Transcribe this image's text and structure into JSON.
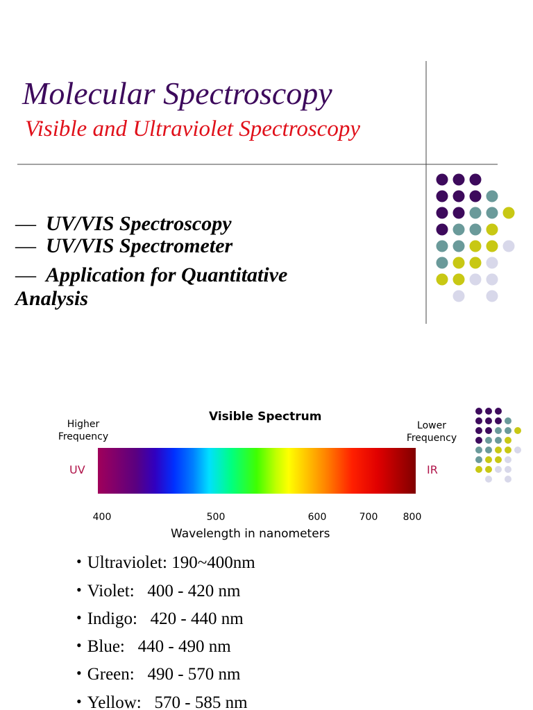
{
  "header": {
    "title": "Molecular Spectroscopy",
    "subtitle": "Visible and Ultraviolet Spectroscopy"
  },
  "topics": [
    "UV/VIS Spectroscopy",
    "UV/VIS Spectrometer",
    "Application for Quantitative Analysis"
  ],
  "spectrum": {
    "title": "Visible Spectrum",
    "left_label": "Higher Frequency",
    "right_label": "Lower Frequency",
    "left_end": "UV",
    "right_end": "IR",
    "ticks": [
      400,
      500,
      600,
      700,
      800
    ],
    "axis_label": "Wavelength in nanometers"
  },
  "ranges": [
    "Ultraviolet: 190~400nm",
    "Violet:   400 - 420 nm",
    "Indigo:   420 - 440 nm",
    "Blue:   440 - 490 nm",
    "Green:   490 - 570 nm",
    "Yellow:   570 - 585 nm"
  ]
}
